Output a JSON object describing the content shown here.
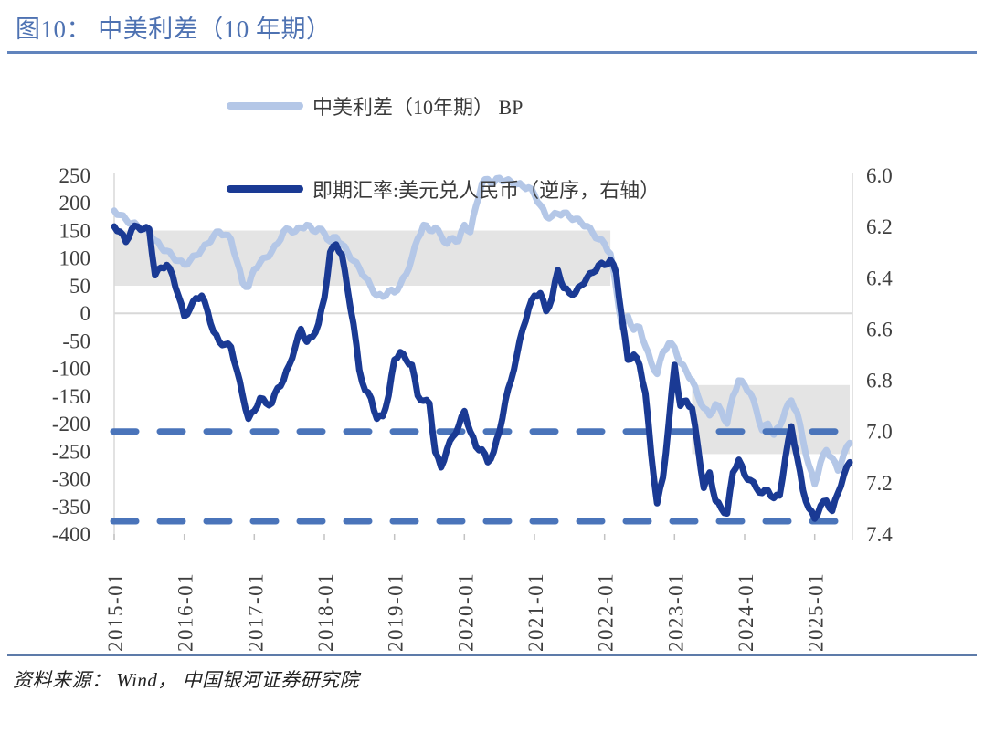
{
  "figure": {
    "title": "图10： 中美利差（10 年期）"
  },
  "legend": [
    {
      "label": "中美利差（10年期） BP",
      "color": "#b4c7e7"
    },
    {
      "label": "即期汇率:美元兑人民币（逆序，右轴）",
      "color": "#1a3a94"
    }
  ],
  "source_note": "资料来源： Wind， 中国银河证券研究院",
  "colors": {
    "title": "#4e72b2",
    "title_rule": "#6184bd",
    "footer_rule": "#5d7ba9",
    "band": "#e4e4e4",
    "zero_line": "#d8d8d8",
    "axis_edge": "#d9d9d9",
    "tick_mark": "#c3c3c3",
    "axis_text": "#3f3f3f",
    "dashed": "#4a74ba",
    "spread": "#b4c7e7",
    "cny": "#1a3a94"
  },
  "chart_data": {
    "type": "line",
    "title": "中美利差（10 年期）",
    "frequency": "monthly",
    "x_start": "2015-01",
    "x_end": "2025-07",
    "x_tick_labels": [
      "2015-01",
      "2016-01",
      "2017-01",
      "2018-01",
      "2019-01",
      "2020-01",
      "2021-01",
      "2022-01",
      "2023-01",
      "2024-01",
      "2025-01"
    ],
    "left_axis": {
      "label": "BP",
      "min": -400,
      "max": 250,
      "tick_step": 50,
      "tick_labels": [
        "250",
        "200",
        "150",
        "100",
        "50",
        "0",
        "-50",
        "-100",
        "-150",
        "-200",
        "-250",
        "-300",
        "-350",
        "-400"
      ]
    },
    "right_axis": {
      "label": "即期汇率:美元兑人民币",
      "min": 6.0,
      "max": 7.4,
      "inverted": true,
      "tick_step": 0.2,
      "tick_labels": [
        "6.0",
        "6.2",
        "6.4",
        "6.6",
        "6.8",
        "7.0",
        "7.2",
        "7.4"
      ]
    },
    "legend_position": "top",
    "grid": "zero-line-only",
    "series": [
      {
        "name": "中美利差（10年期） BP",
        "axis": "left",
        "color": "#b4c7e7",
        "values": [
          186,
          178,
          170,
          163,
          158,
          152,
          148,
          132,
          120,
          113,
          103,
          95,
          88,
          96,
          105,
          115,
          126,
          140,
          148,
          142,
          134,
          95,
          55,
          48,
          80,
          92,
          101,
          112,
          126,
          148,
          152,
          148,
          155,
          160,
          150,
          153,
          145,
          130,
          138,
          125,
          110,
          95,
          82,
          65,
          48,
          32,
          30,
          40,
          38,
          52,
          70,
          100,
          135,
          160,
          150,
          155,
          140,
          126,
          136,
          131,
          160,
          147,
          195,
          235,
          243,
          236,
          245,
          240,
          238,
          234,
          230,
          228,
          215,
          196,
          175,
          176,
          180,
          182,
          175,
          171,
          164,
          158,
          145,
          134,
          126,
          108,
          45,
          -25,
          -5,
          -30,
          -25,
          -60,
          -90,
          -110,
          -70,
          -55,
          -62,
          -90,
          -105,
          -122,
          -150,
          -172,
          -185,
          -165,
          -177,
          -200,
          -150,
          -122,
          -130,
          -145,
          -175,
          -212,
          -200,
          -220,
          -205,
          -175,
          -158,
          -180,
          -230,
          -275,
          -310,
          -270,
          -248,
          -262,
          -285,
          -255,
          -235
        ]
      },
      {
        "name": "即期汇率:美元兑人民币（逆序，右轴）",
        "axis": "right",
        "color": "#1a3a94",
        "values": [
          6.2,
          6.22,
          6.26,
          6.21,
          6.2,
          6.21,
          6.21,
          6.39,
          6.36,
          6.35,
          6.39,
          6.47,
          6.55,
          6.52,
          6.48,
          6.47,
          6.53,
          6.61,
          6.65,
          6.66,
          6.67,
          6.76,
          6.86,
          6.95,
          6.92,
          6.87,
          6.89,
          6.89,
          6.83,
          6.8,
          6.74,
          6.67,
          6.6,
          6.65,
          6.63,
          6.58,
          6.48,
          6.3,
          6.27,
          6.31,
          6.45,
          6.58,
          6.76,
          6.84,
          6.87,
          6.95,
          6.94,
          6.86,
          6.72,
          6.69,
          6.72,
          6.74,
          6.86,
          6.88,
          6.89,
          7.08,
          7.14,
          7.07,
          7.02,
          6.98,
          6.92,
          7.0,
          7.06,
          7.07,
          7.12,
          7.08,
          7.0,
          6.88,
          6.8,
          6.7,
          6.6,
          6.52,
          6.47,
          6.46,
          6.53,
          6.48,
          6.37,
          6.44,
          6.46,
          6.46,
          6.43,
          6.4,
          6.38,
          6.35,
          6.35,
          6.33,
          6.38,
          6.56,
          6.72,
          6.7,
          6.74,
          6.85,
          7.09,
          7.28,
          7.18,
          6.97,
          6.74,
          6.9,
          6.88,
          6.91,
          7.06,
          7.22,
          7.16,
          7.27,
          7.3,
          7.32,
          7.16,
          7.11,
          7.17,
          7.19,
          7.22,
          7.24,
          7.23,
          7.26,
          7.25,
          7.1,
          6.98,
          7.1,
          7.23,
          7.3,
          7.34,
          7.29,
          7.27,
          7.31,
          7.24,
          7.17,
          7.12
        ]
      }
    ],
    "reference_lines": {
      "axis": "right",
      "style": "dashed",
      "color": "#4a74ba",
      "values": [
        7.0,
        7.35
      ]
    },
    "shaded_bands": [
      {
        "start_month_index": 0,
        "end_month_index": 85,
        "top_bp": 150,
        "bottom_bp": 50
      },
      {
        "start_month_index": 99,
        "end_month_index": 126,
        "top_bp": -130,
        "bottom_bp": -255
      }
    ]
  }
}
